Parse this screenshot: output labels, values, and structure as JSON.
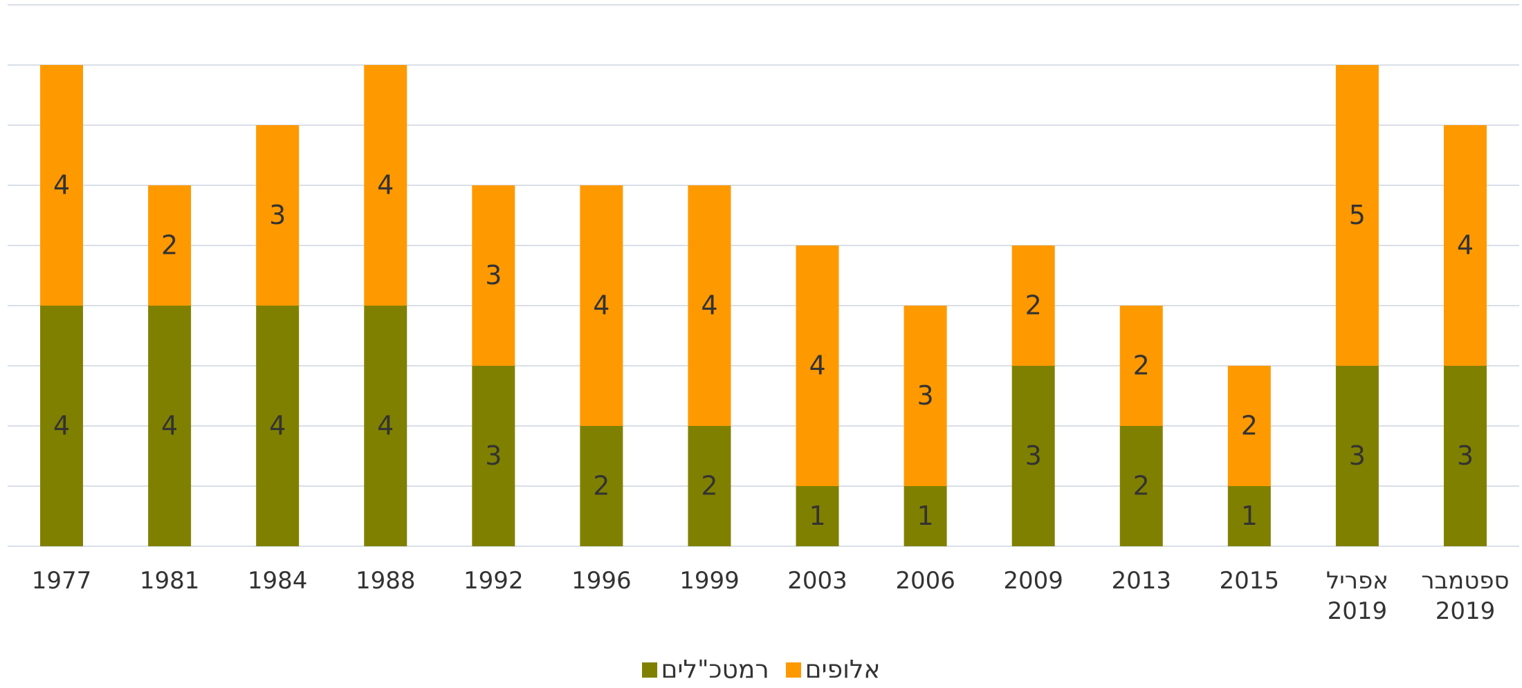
{
  "chart_data": {
    "type": "stacked_bar",
    "categories": [
      "1977",
      "1981",
      "1984",
      "1988",
      "1992",
      "1996",
      "1999",
      "2003",
      "2006",
      "2009",
      "2013",
      "2015",
      "אפריל 2019",
      "ספטמבר 2019"
    ],
    "series": [
      {
        "name": "רמטכ\"לים",
        "color": "#808000",
        "values": [
          4,
          4,
          4,
          4,
          3,
          2,
          2,
          1,
          1,
          3,
          2,
          1,
          3,
          3
        ]
      },
      {
        "name": "אלופים",
        "color": "#ff9900",
        "values": [
          4,
          2,
          3,
          4,
          3,
          4,
          4,
          4,
          3,
          2,
          2,
          2,
          5,
          4
        ]
      }
    ],
    "ylim": [
      0,
      9
    ],
    "yticks": [
      0,
      1,
      2,
      3,
      4,
      5,
      6,
      7,
      8,
      9
    ],
    "grid": true
  }
}
